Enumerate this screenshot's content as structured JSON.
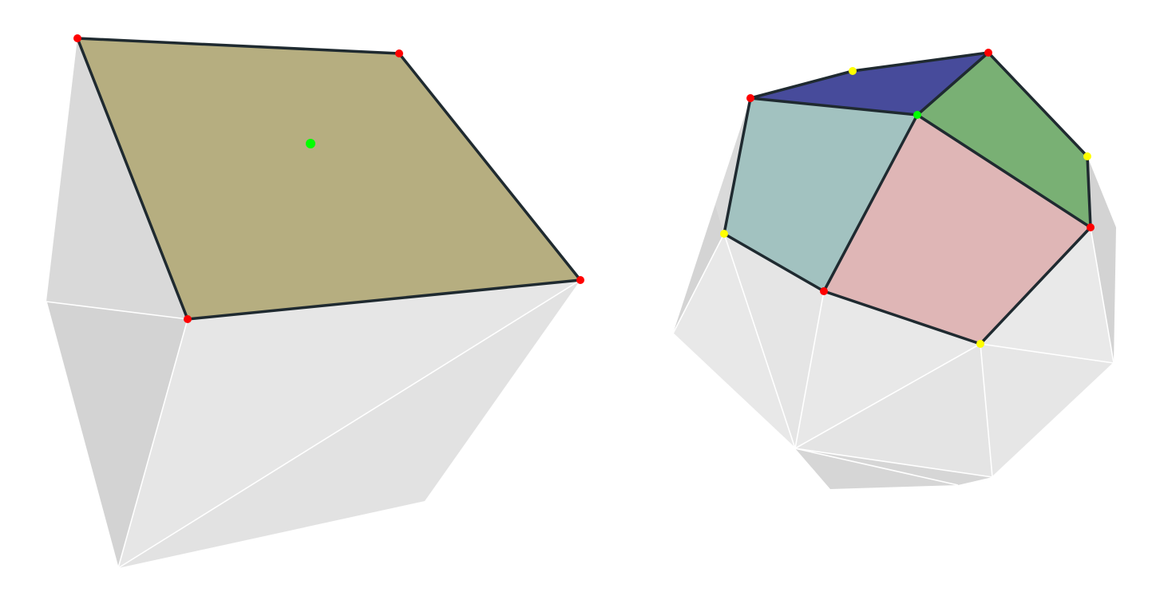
{
  "colors": {
    "background": "#ffffff",
    "mesh_face_light": "#e6e6e6",
    "mesh_face_mid": "#dedede",
    "mesh_face_dark": "#d3d3d3",
    "mesh_edge": "#ffffff",
    "outline_edge": "#1f2a30",
    "selected_face_left": "#b6ae80",
    "face_blue": "#474b9b",
    "face_green": "#79b074",
    "face_teal": "#a2c2c0",
    "face_pink": "#dfb6b6",
    "vertex_red": "#ff0000",
    "vertex_yellow": "#ffff00",
    "vertex_green": "#00ff00"
  },
  "figures": [
    {
      "name": "quad-face-on-box-mesh",
      "highlighted_faces": 1,
      "corner_vertices": 4,
      "center_vertices": 1
    },
    {
      "name": "vertex-fan-on-sphere-mesh",
      "highlighted_faces": 4,
      "center_vertices": 1,
      "corner_vertices_red": 4,
      "corner_vertices_yellow": 4
    }
  ]
}
